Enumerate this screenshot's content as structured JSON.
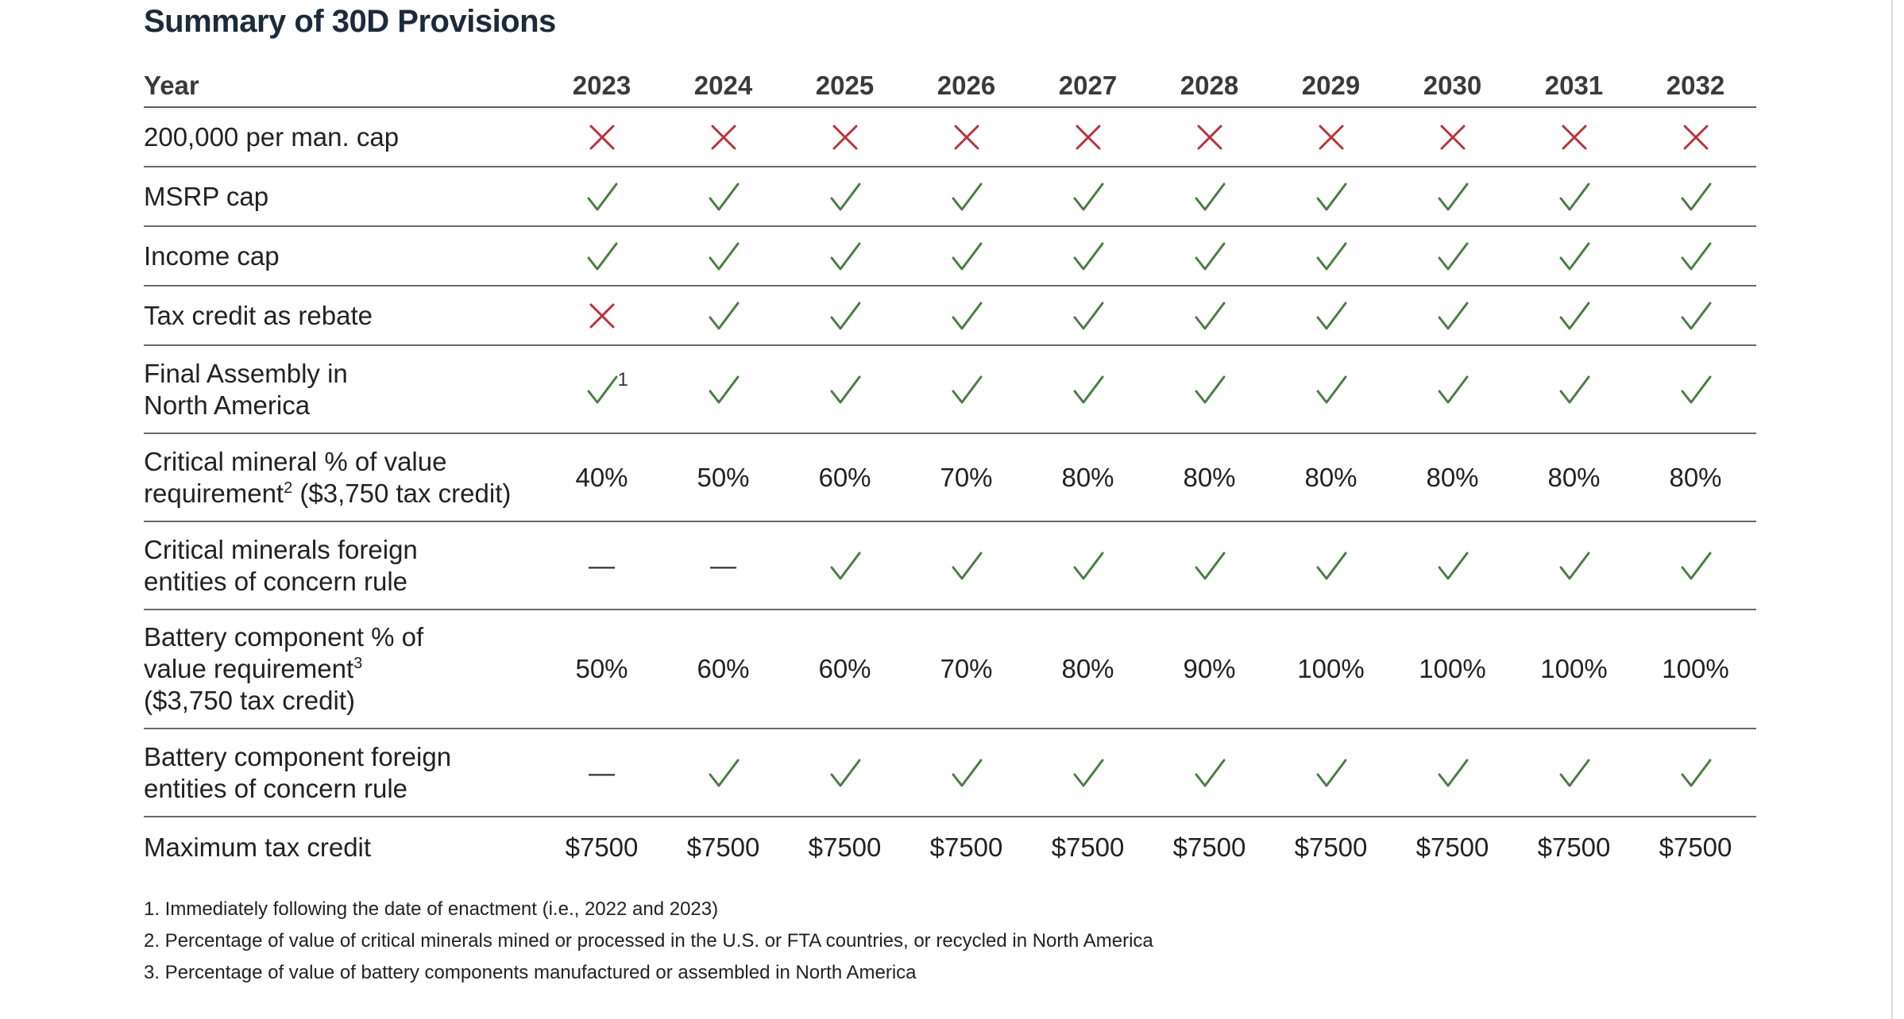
{
  "title": "Summary of 30D Provisions",
  "colors": {
    "title": "#1c2b3a",
    "check": "#4a7d43",
    "cross": "#b8333a",
    "rule": "#6a6a6a"
  },
  "table": {
    "header_label": "Year",
    "years": [
      "2023",
      "2024",
      "2025",
      "2026",
      "2027",
      "2028",
      "2029",
      "2030",
      "2031",
      "2032"
    ],
    "rows": [
      {
        "label_lines": [
          "200,000 per man. cap"
        ],
        "cells": [
          {
            "type": "cross"
          },
          {
            "type": "cross"
          },
          {
            "type": "cross"
          },
          {
            "type": "cross"
          },
          {
            "type": "cross"
          },
          {
            "type": "cross"
          },
          {
            "type": "cross"
          },
          {
            "type": "cross"
          },
          {
            "type": "cross"
          },
          {
            "type": "cross"
          }
        ]
      },
      {
        "label_lines": [
          "MSRP cap"
        ],
        "cells": [
          {
            "type": "check"
          },
          {
            "type": "check"
          },
          {
            "type": "check"
          },
          {
            "type": "check"
          },
          {
            "type": "check"
          },
          {
            "type": "check"
          },
          {
            "type": "check"
          },
          {
            "type": "check"
          },
          {
            "type": "check"
          },
          {
            "type": "check"
          }
        ]
      },
      {
        "label_lines": [
          "Income cap"
        ],
        "cells": [
          {
            "type": "check"
          },
          {
            "type": "check"
          },
          {
            "type": "check"
          },
          {
            "type": "check"
          },
          {
            "type": "check"
          },
          {
            "type": "check"
          },
          {
            "type": "check"
          },
          {
            "type": "check"
          },
          {
            "type": "check"
          },
          {
            "type": "check"
          }
        ]
      },
      {
        "label_lines": [
          "Tax credit as rebate"
        ],
        "cells": [
          {
            "type": "cross"
          },
          {
            "type": "check"
          },
          {
            "type": "check"
          },
          {
            "type": "check"
          },
          {
            "type": "check"
          },
          {
            "type": "check"
          },
          {
            "type": "check"
          },
          {
            "type": "check"
          },
          {
            "type": "check"
          },
          {
            "type": "check"
          }
        ]
      },
      {
        "label_lines": [
          "Final Assembly in",
          "North America"
        ],
        "cells": [
          {
            "type": "check",
            "sup": "1"
          },
          {
            "type": "check"
          },
          {
            "type": "check"
          },
          {
            "type": "check"
          },
          {
            "type": "check"
          },
          {
            "type": "check"
          },
          {
            "type": "check"
          },
          {
            "type": "check"
          },
          {
            "type": "check"
          },
          {
            "type": "check"
          }
        ]
      },
      {
        "label_lines": [
          "Critical mineral % of value",
          "requirement"
        ],
        "label_sup": "2",
        "label_suffix": " ($3,750 tax credit)",
        "cells": [
          {
            "type": "text",
            "value": "40%"
          },
          {
            "type": "text",
            "value": "50%"
          },
          {
            "type": "text",
            "value": "60%"
          },
          {
            "type": "text",
            "value": "70%"
          },
          {
            "type": "text",
            "value": "80%"
          },
          {
            "type": "text",
            "value": "80%"
          },
          {
            "type": "text",
            "value": "80%"
          },
          {
            "type": "text",
            "value": "80%"
          },
          {
            "type": "text",
            "value": "80%"
          },
          {
            "type": "text",
            "value": "80%"
          }
        ]
      },
      {
        "label_lines": [
          "Critical minerals foreign",
          "entities of concern rule"
        ],
        "cells": [
          {
            "type": "dash"
          },
          {
            "type": "dash"
          },
          {
            "type": "check"
          },
          {
            "type": "check"
          },
          {
            "type": "check"
          },
          {
            "type": "check"
          },
          {
            "type": "check"
          },
          {
            "type": "check"
          },
          {
            "type": "check"
          },
          {
            "type": "check"
          }
        ]
      },
      {
        "label_lines": [
          "Battery component % of",
          "value requirement",
          "($3,750 tax credit)"
        ],
        "label_sup_line": 1,
        "label_sup": "3",
        "cells": [
          {
            "type": "text",
            "value": "50%"
          },
          {
            "type": "text",
            "value": "60%"
          },
          {
            "type": "text",
            "value": "60%"
          },
          {
            "type": "text",
            "value": "70%"
          },
          {
            "type": "text",
            "value": "80%"
          },
          {
            "type": "text",
            "value": "90%"
          },
          {
            "type": "text",
            "value": "100%"
          },
          {
            "type": "text",
            "value": "100%"
          },
          {
            "type": "text",
            "value": "100%"
          },
          {
            "type": "text",
            "value": "100%"
          }
        ]
      },
      {
        "label_lines": [
          "Battery component foreign",
          "entities of concern rule"
        ],
        "cells": [
          {
            "type": "dash"
          },
          {
            "type": "check"
          },
          {
            "type": "check"
          },
          {
            "type": "check"
          },
          {
            "type": "check"
          },
          {
            "type": "check"
          },
          {
            "type": "check"
          },
          {
            "type": "check"
          },
          {
            "type": "check"
          },
          {
            "type": "check"
          }
        ]
      },
      {
        "label_lines": [
          "Maximum tax credit"
        ],
        "cells": [
          {
            "type": "text",
            "value": "$7500"
          },
          {
            "type": "text",
            "value": "$7500"
          },
          {
            "type": "text",
            "value": "$7500"
          },
          {
            "type": "text",
            "value": "$7500"
          },
          {
            "type": "text",
            "value": "$7500"
          },
          {
            "type": "text",
            "value": "$7500"
          },
          {
            "type": "text",
            "value": "$7500"
          },
          {
            "type": "text",
            "value": "$7500"
          },
          {
            "type": "text",
            "value": "$7500"
          },
          {
            "type": "text",
            "value": "$7500"
          }
        ]
      }
    ]
  },
  "footnotes": [
    "1.  Immediately following the date of enactment (i.e., 2022 and 2023)",
    "2. Percentage of value of critical minerals mined or processed in the U.S. or FTA countries, or recycled in North America",
    "3. Percentage of value of battery components manufactured or assembled in North America"
  ]
}
